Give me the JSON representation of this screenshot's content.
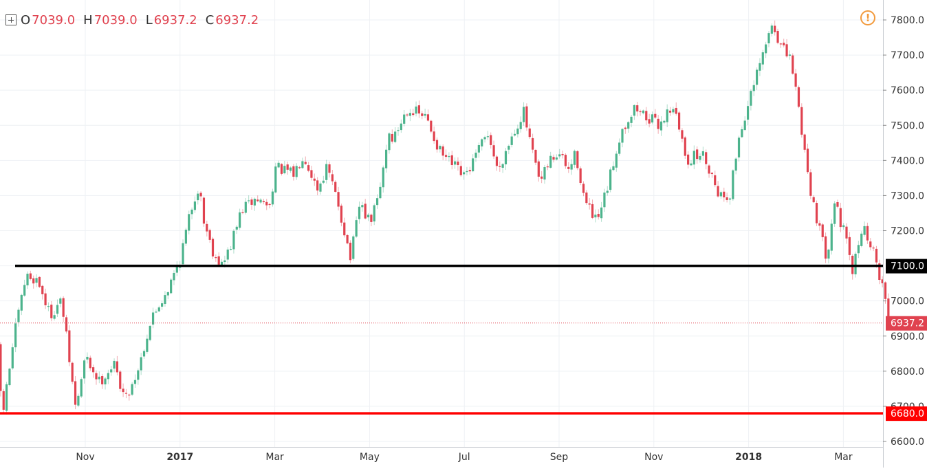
{
  "legend": {
    "o_label": "O",
    "o_value": "7039.0",
    "h_label": "H",
    "h_value": "7039.0",
    "l_label": "L",
    "l_value": "6937.2",
    "c_label": "C",
    "c_value": "6937.2"
  },
  "alert_icon": "warning-icon",
  "colors": {
    "up": "#4cb38c",
    "down": "#e0424f",
    "support": "#ff0000",
    "level": "#000000",
    "grid": "#eef1f4"
  },
  "chart_data": {
    "type": "candlestick",
    "title": "",
    "xlabel": "",
    "ylabel": "",
    "ylim": [
      6600,
      7800
    ],
    "y_ticks": [
      "6600.0",
      "6700.0",
      "6800.0",
      "6900.0",
      "7000.0",
      "7100.0",
      "7200.0",
      "7300.0",
      "7400.0",
      "7500.0",
      "7600.0",
      "7700.0",
      "7800.0"
    ],
    "x_ticks": [
      {
        "label": "Nov",
        "bold": false,
        "xi": 4
      },
      {
        "label": "2017",
        "bold": true,
        "xi": 6
      },
      {
        "label": "Mar",
        "bold": false,
        "xi": 8
      },
      {
        "label": "May",
        "bold": false,
        "xi": 10
      },
      {
        "label": "Jul",
        "bold": false,
        "xi": 12
      },
      {
        "label": "Sep",
        "bold": false,
        "xi": 14
      },
      {
        "label": "Nov",
        "bold": false,
        "xi": 16
      },
      {
        "label": "2018",
        "bold": true,
        "xi": 18
      },
      {
        "label": "Mar",
        "bold": false,
        "xi": 20
      }
    ],
    "x_range": [
      2.15,
      20.95
    ],
    "grid": true,
    "horizontal_lines": [
      {
        "value": 7100,
        "label": "7100.0",
        "color": "#000000"
      },
      {
        "value": 6680,
        "label": "6680.0",
        "color": "#ff0000"
      }
    ],
    "last_price": {
      "value": 6937.2,
      "label": "6937.2",
      "color": "#e0424f"
    },
    "path": [
      [
        2.15,
        6860
      ],
      [
        2.25,
        6670
      ],
      [
        2.5,
        6900
      ],
      [
        2.75,
        7070
      ],
      [
        3.0,
        7060
      ],
      [
        3.25,
        6960
      ],
      [
        3.5,
        7000
      ],
      [
        3.8,
        6690
      ],
      [
        4.0,
        6840
      ],
      [
        4.3,
        6770
      ],
      [
        4.6,
        6820
      ],
      [
        4.85,
        6720
      ],
      [
        5.1,
        6800
      ],
      [
        5.4,
        6950
      ],
      [
        5.8,
        7050
      ],
      [
        6.0,
        7120
      ],
      [
        6.25,
        7270
      ],
      [
        6.4,
        7330
      ],
      [
        6.5,
        7230
      ],
      [
        6.7,
        7140
      ],
      [
        6.9,
        7100
      ],
      [
        7.1,
        7170
      ],
      [
        7.3,
        7260
      ],
      [
        7.6,
        7290
      ],
      [
        7.9,
        7270
      ],
      [
        8.0,
        7380
      ],
      [
        8.4,
        7360
      ],
      [
        8.6,
        7420
      ],
      [
        8.9,
        7320
      ],
      [
        9.1,
        7380
      ],
      [
        9.35,
        7270
      ],
      [
        9.6,
        7120
      ],
      [
        9.8,
        7280
      ],
      [
        10.0,
        7220
      ],
      [
        10.2,
        7300
      ],
      [
        10.4,
        7480
      ],
      [
        10.5,
        7460
      ],
      [
        10.8,
        7550
      ],
      [
        11.2,
        7520
      ],
      [
        11.5,
        7420
      ],
      [
        11.8,
        7380
      ],
      [
        12.0,
        7350
      ],
      [
        12.2,
        7400
      ],
      [
        12.5,
        7480
      ],
      [
        12.7,
        7370
      ],
      [
        13.0,
        7470
      ],
      [
        13.25,
        7540
      ],
      [
        13.4,
        7440
      ],
      [
        13.6,
        7330
      ],
      [
        13.8,
        7400
      ],
      [
        14.0,
        7420
      ],
      [
        14.2,
        7370
      ],
      [
        14.35,
        7420
      ],
      [
        14.55,
        7280
      ],
      [
        14.8,
        7220
      ],
      [
        15.0,
        7310
      ],
      [
        15.3,
        7480
      ],
      [
        15.6,
        7550
      ],
      [
        15.9,
        7520
      ],
      [
        16.1,
        7500
      ],
      [
        16.4,
        7560
      ],
      [
        16.7,
        7400
      ],
      [
        17.0,
        7420
      ],
      [
        17.1,
        7400
      ],
      [
        17.4,
        7300
      ],
      [
        17.6,
        7300
      ],
      [
        17.8,
        7470
      ],
      [
        18.0,
        7560
      ],
      [
        18.3,
        7700
      ],
      [
        18.5,
        7790
      ],
      [
        18.7,
        7720
      ],
      [
        18.9,
        7680
      ],
      [
        19.0,
        7600
      ],
      [
        19.3,
        7320
      ],
      [
        19.5,
        7200
      ],
      [
        19.65,
        7120
      ],
      [
        19.8,
        7290
      ],
      [
        20.0,
        7200
      ],
      [
        20.2,
        7080
      ],
      [
        20.4,
        7220
      ],
      [
        20.6,
        7150
      ],
      [
        20.75,
        7080
      ],
      [
        20.85,
        7040
      ],
      [
        20.95,
        6937
      ]
    ]
  }
}
